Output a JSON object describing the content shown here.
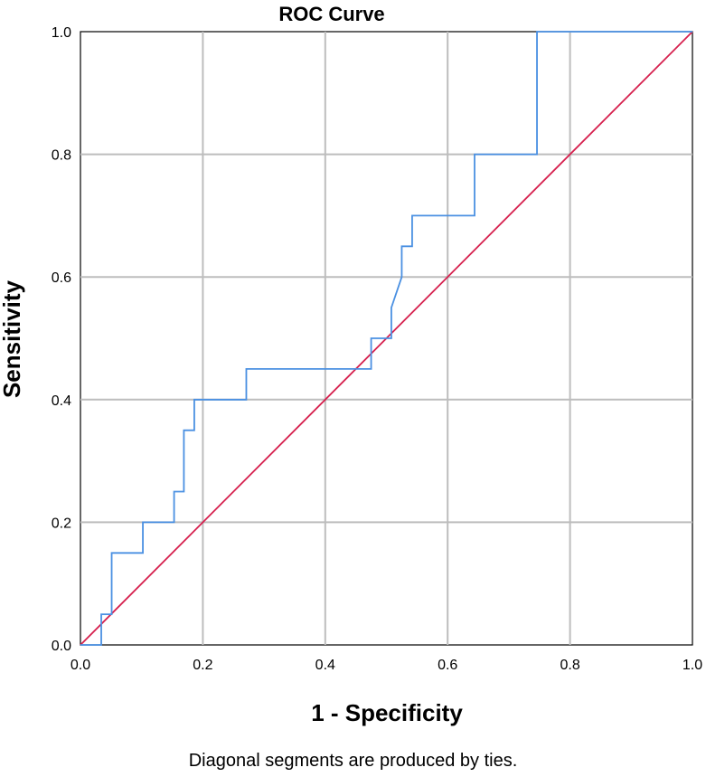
{
  "chart_data": {
    "type": "line",
    "title": "ROC Curve",
    "xlabel": "1 - Specificity",
    "ylabel": "Sensitivity",
    "xlim": [
      0.0,
      1.0
    ],
    "ylim": [
      0.0,
      1.0
    ],
    "x_ticks": [
      "0.0",
      "0.2",
      "0.4",
      "0.6",
      "0.8",
      "1.0"
    ],
    "y_ticks": [
      "0.0",
      "0.2",
      "0.4",
      "0.6",
      "0.8",
      "1.0"
    ],
    "grid": true,
    "series": [
      {
        "name": "ROC",
        "color": "#4a90e2",
        "points": [
          [
            0.0,
            0.0
          ],
          [
            0.034,
            0.0
          ],
          [
            0.034,
            0.05
          ],
          [
            0.051,
            0.05
          ],
          [
            0.051,
            0.15
          ],
          [
            0.102,
            0.15
          ],
          [
            0.102,
            0.2
          ],
          [
            0.153,
            0.2
          ],
          [
            0.153,
            0.25
          ],
          [
            0.169,
            0.25
          ],
          [
            0.169,
            0.35
          ],
          [
            0.186,
            0.35
          ],
          [
            0.186,
            0.4
          ],
          [
            0.271,
            0.4
          ],
          [
            0.271,
            0.45
          ],
          [
            0.475,
            0.45
          ],
          [
            0.475,
            0.5
          ],
          [
            0.508,
            0.5
          ],
          [
            0.508,
            0.55
          ],
          [
            0.525,
            0.6
          ],
          [
            0.525,
            0.65
          ],
          [
            0.542,
            0.65
          ],
          [
            0.542,
            0.7
          ],
          [
            0.644,
            0.7
          ],
          [
            0.644,
            0.8
          ],
          [
            0.746,
            0.8
          ],
          [
            0.746,
            1.0
          ],
          [
            1.0,
            1.0
          ]
        ]
      },
      {
        "name": "Reference Line",
        "color": "#d6204e",
        "points": [
          [
            0.0,
            0.0
          ],
          [
            1.0,
            1.0
          ]
        ]
      }
    ]
  },
  "footnote": "Diagonal segments are produced by ties."
}
